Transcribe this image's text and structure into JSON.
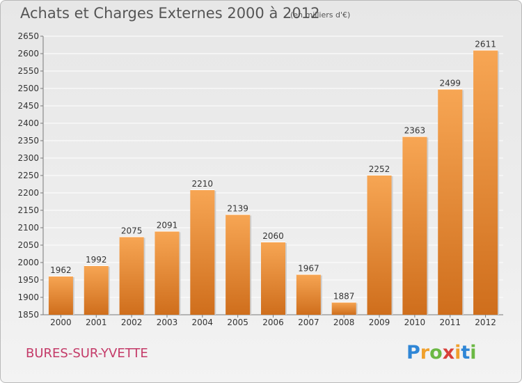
{
  "title": "Achats et Charges Externes 2000 à 2012",
  "unit_note": "(en milliers d'€)",
  "location": "BURES-SUR-YVETTE",
  "logo": {
    "letters": [
      {
        "char": "P",
        "color": "#2f86d6"
      },
      {
        "char": "r",
        "color": "#f0a02c"
      },
      {
        "char": "o",
        "color": "#6bb844"
      },
      {
        "char": "x",
        "color": "#d8403a"
      },
      {
        "char": "i",
        "color": "#f0a02c"
      },
      {
        "char": "t",
        "color": "#2f86d6"
      },
      {
        "char": "i",
        "color": "#6bb844"
      }
    ]
  },
  "colors": {
    "bar_light": "#f7a654",
    "bar_dark": "#cf6e1c",
    "title": "#555555",
    "location": "#c43a68",
    "grid": "#ffffff"
  },
  "chart_data": {
    "type": "bar",
    "title": "Achats et Charges Externes 2000 à 2012",
    "subtitle": "(en milliers d'€)",
    "xlabel": "",
    "ylabel": "",
    "categories": [
      "2000",
      "2001",
      "2002",
      "2003",
      "2004",
      "2005",
      "2006",
      "2007",
      "2008",
      "2009",
      "2010",
      "2011",
      "2012"
    ],
    "values": [
      1962,
      1992,
      2075,
      2091,
      2210,
      2139,
      2060,
      1967,
      1887,
      2252,
      2363,
      2499,
      2611
    ],
    "ylim": [
      1850,
      2650
    ],
    "yticks": [
      1850,
      1900,
      1950,
      2000,
      2050,
      2100,
      2150,
      2200,
      2250,
      2300,
      2350,
      2400,
      2450,
      2500,
      2550,
      2600,
      2650
    ],
    "grid": true,
    "legend": "none"
  }
}
